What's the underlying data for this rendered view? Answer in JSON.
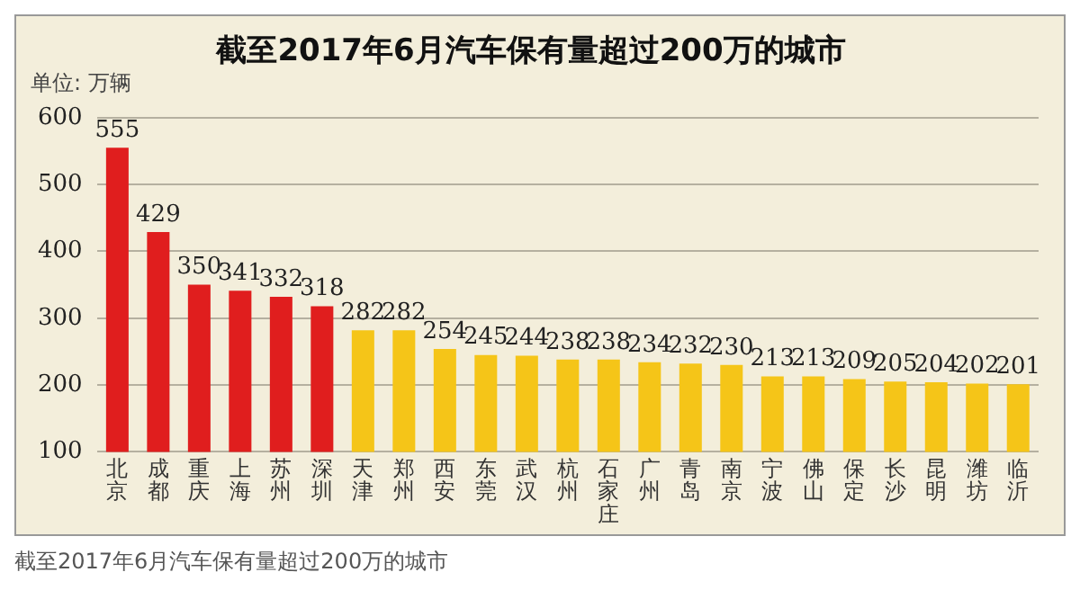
{
  "chart_data": {
    "type": "bar",
    "title": "截至2017年6月汽车保有量超过200万的城市",
    "ylabel": "单位: 万辆",
    "categories": [
      "北京",
      "成都",
      "重庆",
      "上海",
      "苏州",
      "深圳",
      "天津",
      "郑州",
      "西安",
      "东莞",
      "武汉",
      "杭州",
      "石家庄",
      "广州",
      "青岛",
      "南京",
      "宁波",
      "佛山",
      "保定",
      "长沙",
      "昆明",
      "潍坊",
      "临沂"
    ],
    "values": [
      555,
      429,
      350,
      341,
      332,
      318,
      282,
      282,
      254,
      245,
      244,
      238,
      238,
      234,
      232,
      230,
      213,
      213,
      209,
      205,
      204,
      202,
      201
    ],
    "colors": [
      "#e01e1e",
      "#e01e1e",
      "#e01e1e",
      "#e01e1e",
      "#e01e1e",
      "#e01e1e",
      "#f5c518",
      "#f5c518",
      "#f5c518",
      "#f5c518",
      "#f5c518",
      "#f5c518",
      "#f5c518",
      "#f5c518",
      "#f5c518",
      "#f5c518",
      "#f5c518",
      "#f5c518",
      "#f5c518",
      "#f5c518",
      "#f5c518",
      "#f5c518",
      "#f5c518"
    ],
    "ylim": [
      100,
      600
    ],
    "yticks": [
      100,
      200,
      300,
      400,
      500,
      600
    ],
    "grid": "y",
    "data_labels": true,
    "legend": false,
    "annotations": [
      "截至2017年6月汽车保有量超过200万的城市"
    ]
  }
}
